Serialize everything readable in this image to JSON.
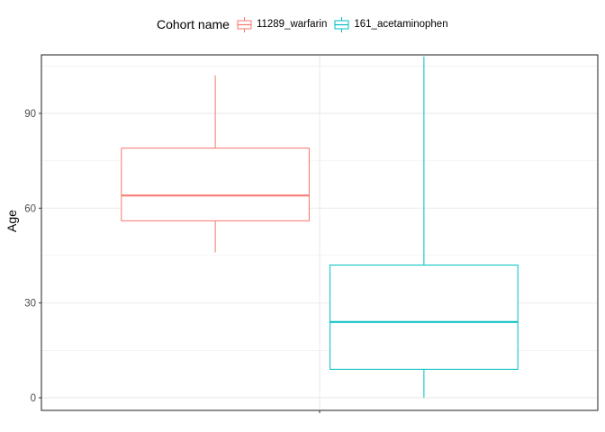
{
  "chart_data": {
    "type": "boxplot",
    "title": "",
    "xlabel": "",
    "ylabel": "Age",
    "ylim": [
      -4,
      108.5
    ],
    "yticks": [
      0,
      30,
      60,
      90
    ],
    "grid": true,
    "legend": {
      "title": "Cohort name",
      "position": "top"
    },
    "series": [
      {
        "name": "11289_warfarin",
        "color": "#F8766D",
        "min": 46,
        "q1": 56,
        "median": 64,
        "q3": 79,
        "max": 102
      },
      {
        "name": "161_acetaminophen",
        "color": "#00BFC4",
        "min": 0,
        "q1": 9,
        "median": 24,
        "q3": 42,
        "max": 108
      }
    ]
  }
}
